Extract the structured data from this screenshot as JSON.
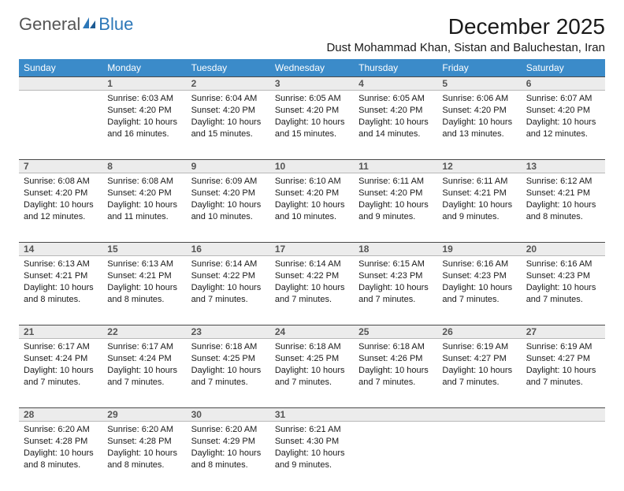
{
  "brand": {
    "word1": "General",
    "word2": "Blue"
  },
  "colors": {
    "header_bg": "#3b8bc9",
    "header_text": "#ffffff",
    "daynum_bg": "#ececec",
    "daynum_border_top": "#4a4a4a",
    "daynum_border_bottom": "#b8b8b8",
    "page_bg": "#ffffff",
    "body_text": "#1a1a1a",
    "brand_gray": "#555555",
    "brand_blue": "#2c77b8"
  },
  "typography": {
    "title_fontsize": 28,
    "location_fontsize": 15,
    "dayheader_fontsize": 12,
    "daynum_fontsize": 12,
    "cell_fontsize": 11,
    "font_family": "Arial"
  },
  "title": "December 2025",
  "location": "Dust Mohammad Khan, Sistan and Baluchestan, Iran",
  "day_headers": [
    "Sunday",
    "Monday",
    "Tuesday",
    "Wednesday",
    "Thursday",
    "Friday",
    "Saturday"
  ],
  "calendar": {
    "type": "table",
    "start_weekday": 1,
    "days": [
      {
        "n": "1",
        "sunrise": "Sunrise: 6:03 AM",
        "sunset": "Sunset: 4:20 PM",
        "day1": "Daylight: 10 hours",
        "day2": "and 16 minutes."
      },
      {
        "n": "2",
        "sunrise": "Sunrise: 6:04 AM",
        "sunset": "Sunset: 4:20 PM",
        "day1": "Daylight: 10 hours",
        "day2": "and 15 minutes."
      },
      {
        "n": "3",
        "sunrise": "Sunrise: 6:05 AM",
        "sunset": "Sunset: 4:20 PM",
        "day1": "Daylight: 10 hours",
        "day2": "and 15 minutes."
      },
      {
        "n": "4",
        "sunrise": "Sunrise: 6:05 AM",
        "sunset": "Sunset: 4:20 PM",
        "day1": "Daylight: 10 hours",
        "day2": "and 14 minutes."
      },
      {
        "n": "5",
        "sunrise": "Sunrise: 6:06 AM",
        "sunset": "Sunset: 4:20 PM",
        "day1": "Daylight: 10 hours",
        "day2": "and 13 minutes."
      },
      {
        "n": "6",
        "sunrise": "Sunrise: 6:07 AM",
        "sunset": "Sunset: 4:20 PM",
        "day1": "Daylight: 10 hours",
        "day2": "and 12 minutes."
      },
      {
        "n": "7",
        "sunrise": "Sunrise: 6:08 AM",
        "sunset": "Sunset: 4:20 PM",
        "day1": "Daylight: 10 hours",
        "day2": "and 12 minutes."
      },
      {
        "n": "8",
        "sunrise": "Sunrise: 6:08 AM",
        "sunset": "Sunset: 4:20 PM",
        "day1": "Daylight: 10 hours",
        "day2": "and 11 minutes."
      },
      {
        "n": "9",
        "sunrise": "Sunrise: 6:09 AM",
        "sunset": "Sunset: 4:20 PM",
        "day1": "Daylight: 10 hours",
        "day2": "and 10 minutes."
      },
      {
        "n": "10",
        "sunrise": "Sunrise: 6:10 AM",
        "sunset": "Sunset: 4:20 PM",
        "day1": "Daylight: 10 hours",
        "day2": "and 10 minutes."
      },
      {
        "n": "11",
        "sunrise": "Sunrise: 6:11 AM",
        "sunset": "Sunset: 4:20 PM",
        "day1": "Daylight: 10 hours",
        "day2": "and 9 minutes."
      },
      {
        "n": "12",
        "sunrise": "Sunrise: 6:11 AM",
        "sunset": "Sunset: 4:21 PM",
        "day1": "Daylight: 10 hours",
        "day2": "and 9 minutes."
      },
      {
        "n": "13",
        "sunrise": "Sunrise: 6:12 AM",
        "sunset": "Sunset: 4:21 PM",
        "day1": "Daylight: 10 hours",
        "day2": "and 8 minutes."
      },
      {
        "n": "14",
        "sunrise": "Sunrise: 6:13 AM",
        "sunset": "Sunset: 4:21 PM",
        "day1": "Daylight: 10 hours",
        "day2": "and 8 minutes."
      },
      {
        "n": "15",
        "sunrise": "Sunrise: 6:13 AM",
        "sunset": "Sunset: 4:21 PM",
        "day1": "Daylight: 10 hours",
        "day2": "and 8 minutes."
      },
      {
        "n": "16",
        "sunrise": "Sunrise: 6:14 AM",
        "sunset": "Sunset: 4:22 PM",
        "day1": "Daylight: 10 hours",
        "day2": "and 7 minutes."
      },
      {
        "n": "17",
        "sunrise": "Sunrise: 6:14 AM",
        "sunset": "Sunset: 4:22 PM",
        "day1": "Daylight: 10 hours",
        "day2": "and 7 minutes."
      },
      {
        "n": "18",
        "sunrise": "Sunrise: 6:15 AM",
        "sunset": "Sunset: 4:23 PM",
        "day1": "Daylight: 10 hours",
        "day2": "and 7 minutes."
      },
      {
        "n": "19",
        "sunrise": "Sunrise: 6:16 AM",
        "sunset": "Sunset: 4:23 PM",
        "day1": "Daylight: 10 hours",
        "day2": "and 7 minutes."
      },
      {
        "n": "20",
        "sunrise": "Sunrise: 6:16 AM",
        "sunset": "Sunset: 4:23 PM",
        "day1": "Daylight: 10 hours",
        "day2": "and 7 minutes."
      },
      {
        "n": "21",
        "sunrise": "Sunrise: 6:17 AM",
        "sunset": "Sunset: 4:24 PM",
        "day1": "Daylight: 10 hours",
        "day2": "and 7 minutes."
      },
      {
        "n": "22",
        "sunrise": "Sunrise: 6:17 AM",
        "sunset": "Sunset: 4:24 PM",
        "day1": "Daylight: 10 hours",
        "day2": "and 7 minutes."
      },
      {
        "n": "23",
        "sunrise": "Sunrise: 6:18 AM",
        "sunset": "Sunset: 4:25 PM",
        "day1": "Daylight: 10 hours",
        "day2": "and 7 minutes."
      },
      {
        "n": "24",
        "sunrise": "Sunrise: 6:18 AM",
        "sunset": "Sunset: 4:25 PM",
        "day1": "Daylight: 10 hours",
        "day2": "and 7 minutes."
      },
      {
        "n": "25",
        "sunrise": "Sunrise: 6:18 AM",
        "sunset": "Sunset: 4:26 PM",
        "day1": "Daylight: 10 hours",
        "day2": "and 7 minutes."
      },
      {
        "n": "26",
        "sunrise": "Sunrise: 6:19 AM",
        "sunset": "Sunset: 4:27 PM",
        "day1": "Daylight: 10 hours",
        "day2": "and 7 minutes."
      },
      {
        "n": "27",
        "sunrise": "Sunrise: 6:19 AM",
        "sunset": "Sunset: 4:27 PM",
        "day1": "Daylight: 10 hours",
        "day2": "and 7 minutes."
      },
      {
        "n": "28",
        "sunrise": "Sunrise: 6:20 AM",
        "sunset": "Sunset: 4:28 PM",
        "day1": "Daylight: 10 hours",
        "day2": "and 8 minutes."
      },
      {
        "n": "29",
        "sunrise": "Sunrise: 6:20 AM",
        "sunset": "Sunset: 4:28 PM",
        "day1": "Daylight: 10 hours",
        "day2": "and 8 minutes."
      },
      {
        "n": "30",
        "sunrise": "Sunrise: 6:20 AM",
        "sunset": "Sunset: 4:29 PM",
        "day1": "Daylight: 10 hours",
        "day2": "and 8 minutes."
      },
      {
        "n": "31",
        "sunrise": "Sunrise: 6:21 AM",
        "sunset": "Sunset: 4:30 PM",
        "day1": "Daylight: 10 hours",
        "day2": "and 9 minutes."
      }
    ]
  }
}
